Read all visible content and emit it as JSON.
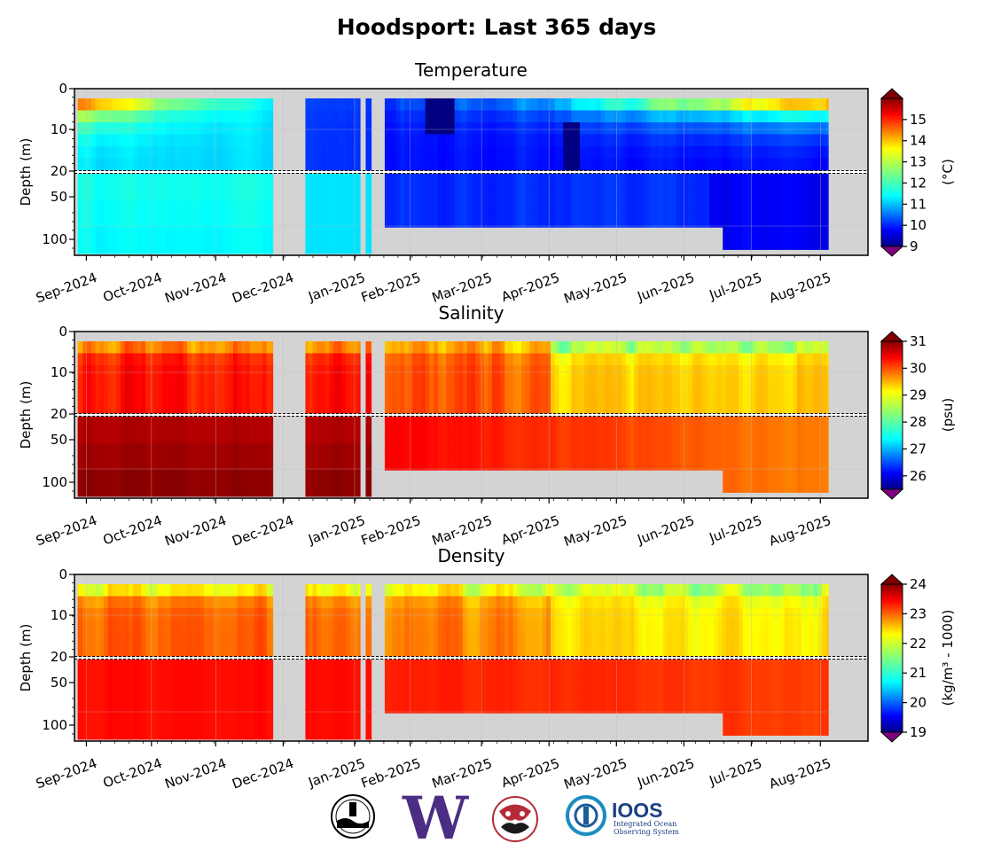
{
  "title": "Hoodsport: Last 365 days",
  "colors": {
    "missing": "#d3d3d3",
    "axis": "#000000",
    "grid": "#bdbdbd"
  },
  "logos": [
    {
      "name": "orca-buoy-logo-icon"
    },
    {
      "name": "uw-w-logo-icon",
      "text": "W"
    },
    {
      "name": "nanoos-native-art-logo-icon"
    },
    {
      "name": "ioos-logo-icon",
      "text": "IOOS",
      "subtext": [
        "Integrated Ocean",
        "Observing System"
      ]
    }
  ],
  "chart_data": [
    {
      "type": "heatmap",
      "title": "Temperature",
      "ylabel": "Depth (m)",
      "colorbar_label": "(°C)",
      "colorbar_ticks": [
        9,
        10,
        11,
        12,
        13,
        14,
        15
      ],
      "vmin": 9,
      "vmax": 16,
      "x_ticks": [
        "Sep-2024",
        "Oct-2024",
        "Nov-2024",
        "Dec-2024",
        "Jan-2025",
        "Feb-2025",
        "Mar-2025",
        "Apr-2025",
        "May-2025",
        "Jun-2025",
        "Jul-2025",
        "Aug-2025"
      ],
      "upper_yticks": [
        "0",
        "10",
        "20"
      ],
      "lower_yticks": [
        "50",
        "100"
      ]
    },
    {
      "type": "heatmap",
      "title": "Salinity",
      "ylabel": "Depth (m)",
      "colorbar_label": "(psu)",
      "colorbar_ticks": [
        26,
        27,
        28,
        29,
        30,
        31
      ],
      "vmin": 25.5,
      "vmax": 31,
      "x_ticks": [
        "Sep-2024",
        "Oct-2024",
        "Nov-2024",
        "Dec-2024",
        "Jan-2025",
        "Feb-2025",
        "Mar-2025",
        "Apr-2025",
        "May-2025",
        "Jun-2025",
        "Jul-2025",
        "Aug-2025"
      ],
      "upper_yticks": [
        "0",
        "10",
        "20"
      ],
      "lower_yticks": [
        "50",
        "100"
      ]
    },
    {
      "type": "heatmap",
      "title": "Density",
      "ylabel": "Depth (m)",
      "colorbar_label": "(kg/m³ - 1000)",
      "colorbar_ticks": [
        19,
        20,
        21,
        22,
        23,
        24
      ],
      "vmin": 19,
      "vmax": 24,
      "x_ticks": [
        "Sep-2024",
        "Oct-2024",
        "Nov-2024",
        "Dec-2024",
        "Jan-2025",
        "Feb-2025",
        "Mar-2025",
        "Apr-2025",
        "May-2025",
        "Jun-2025",
        "Jul-2025",
        "Aug-2025"
      ],
      "upper_yticks": [
        "0",
        "10",
        "20"
      ],
      "lower_yticks": [
        "50",
        "100"
      ]
    }
  ]
}
